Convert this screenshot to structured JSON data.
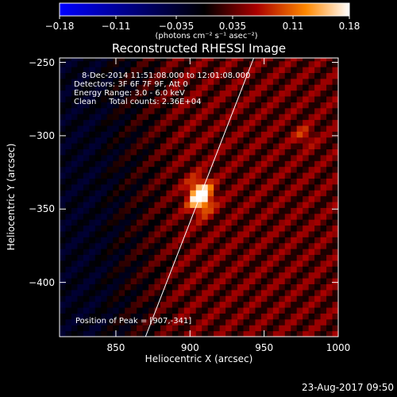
{
  "chart_data": {
    "type": "heatmap",
    "title": "Reconstructed RHESSI Image",
    "xlabel": "Heliocentric X (arcsec)",
    "ylabel": "Heliocentric Y (arcsec)",
    "xlim": [
      812,
      1000
    ],
    "ylim": [
      -437,
      -247
    ],
    "x_ticks": [
      850,
      900,
      950,
      1000
    ],
    "y_ticks": [
      -250,
      -300,
      -350,
      -400
    ],
    "x_tick_labels": [
      "850",
      "900",
      "950",
      "1000"
    ],
    "y_tick_labels": [
      "−250",
      "−300",
      "−350",
      "−400"
    ],
    "colorbar": {
      "range": [
        -0.18,
        0.18
      ],
      "ticks": [
        -0.18,
        -0.11,
        -0.035,
        0.035,
        0.11,
        0.18
      ],
      "tick_labels": [
        "−0.18",
        "−0.11",
        "−0.035",
        "0.035",
        "0.11",
        "0.18"
      ],
      "units": "(photons cm⁻² s⁻¹ asec⁻²)",
      "colormap": [
        "#0000ff",
        "#000000",
        "#aa0000",
        "#ff8800",
        "#ffffff"
      ]
    },
    "annotations": [
      "8-Dec-2014 11:51:08.000 to 12:01:08.000",
      "Detectors: 3F 6F 7F 9F, Att 0",
      "Energy Range: 3.0 - 6.0 keV",
      "Clean     Total counts: 2.36E+04"
    ],
    "peak": {
      "x": 907,
      "y": -341,
      "label": "Position of Peak = [907,-341]"
    },
    "limb_line": [
      [
        870,
        -437
      ],
      [
        943,
        -247
      ]
    ],
    "sources": [
      {
        "x": 907,
        "y": -341,
        "peak_value": 0.18
      },
      {
        "x": 977,
        "y": -300,
        "peak_value": 0.07
      }
    ],
    "grid": false
  },
  "footer": {
    "timestamp": "23-Aug-2017 09:50"
  }
}
